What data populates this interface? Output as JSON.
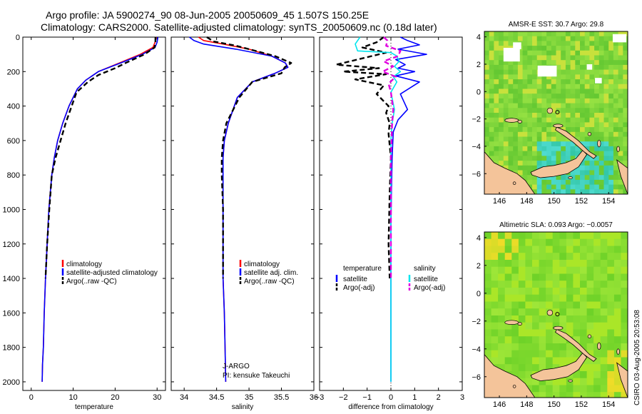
{
  "figure": {
    "title_line1": "Argo profile: JA 5900274_90 08-Jun-2005 20050609_45 1.507S 150.25E",
    "title_line2": "Climatology: CARS2000. Satellite-adjusted climatology: synTS_20050609.nc (0.18d later)",
    "side_label": "CSIRO 03-Aug-2005 20:53:08",
    "credit_line1": "J-ARGO",
    "credit_line2": "PI: kensuke Takeuchi"
  },
  "colors": {
    "climatology": "#ff0000",
    "satellite": "#0000ff",
    "argo": "#000000",
    "salinity_satellite": "#00e5ee",
    "salinity_argo": "#e000e0",
    "land": "#f4c49a"
  },
  "chart_data": [
    {
      "type": "line",
      "name": "temperature",
      "xlabel": "temperature",
      "ylabel": "",
      "xlim": [
        -2,
        32
      ],
      "ylim": [
        2050,
        0
      ],
      "xticks": [
        0,
        10,
        20,
        30
      ],
      "yticks": [
        0,
        200,
        400,
        600,
        800,
        1000,
        1200,
        1400,
        1600,
        1800,
        2000
      ],
      "legend": [
        "climatology",
        "satellite-adjusted climatology",
        "Argo(..raw -QC)"
      ],
      "legend_position": "lower-right",
      "series": [
        {
          "name": "climatology",
          "color": "#ff0000",
          "dash": "solid",
          "x": [
            29.8,
            29.5,
            29.0,
            26.0,
            21.0,
            16.0,
            13.0,
            11.0,
            9.0,
            7.5,
            6.3,
            5.5,
            4.9,
            4.2,
            3.8,
            3.4,
            3.1,
            2.9,
            2.7,
            2.6
          ],
          "y": [
            0,
            30,
            60,
            100,
            150,
            200,
            250,
            300,
            400,
            500,
            600,
            700,
            800,
            1000,
            1200,
            1400,
            1600,
            1800,
            1900,
            2000
          ]
        },
        {
          "name": "satellite-adjusted climatology",
          "color": "#0000ff",
          "dash": "solid",
          "x": [
            30.2,
            30.0,
            29.5,
            26.5,
            21.3,
            16.0,
            13.0,
            11.0,
            9.0,
            7.5,
            6.3,
            5.5,
            4.9,
            4.2,
            3.8,
            3.4,
            3.1,
            2.9,
            2.7,
            2.6
          ],
          "y": [
            0,
            30,
            60,
            100,
            150,
            200,
            250,
            300,
            400,
            500,
            600,
            700,
            800,
            1000,
            1200,
            1400,
            1600,
            1800,
            1900,
            2000
          ]
        },
        {
          "name": "Argo(..raw -QC)",
          "color": "#000000",
          "dash": "dashed",
          "x": [
            29.6,
            29.6,
            29.4,
            27.0,
            22.5,
            20.0,
            16.0,
            13.5,
            10.8,
            8.2,
            7.0,
            5.8,
            4.9,
            4.3,
            3.8,
            3.4
          ],
          "y": [
            0,
            30,
            60,
            100,
            150,
            180,
            220,
            260,
            320,
            500,
            600,
            700,
            800,
            1000,
            1200,
            1400
          ]
        }
      ]
    },
    {
      "type": "line",
      "name": "salinity",
      "xlabel": "salinity",
      "ylabel": "",
      "xlim": [
        33.8,
        36.0
      ],
      "ylim": [
        2050,
        0
      ],
      "xticks": [
        34,
        34.5,
        35,
        35.5,
        36
      ],
      "yticks": [
        0,
        200,
        400,
        600,
        800,
        1000,
        1200,
        1400,
        1600,
        1800,
        2000
      ],
      "legend": [
        "climatology",
        "satellite adj. clim.",
        "Argo(..raw -QC)"
      ],
      "legend_position": "lower-right",
      "series": [
        {
          "name": "climatology",
          "color": "#ff0000",
          "dash": "solid",
          "x": [
            34.22,
            34.3,
            34.6,
            35.0,
            35.35,
            35.56,
            35.6,
            35.4,
            35.05,
            34.82,
            34.68,
            34.62,
            34.6,
            34.6,
            34.6,
            34.6,
            34.6,
            34.62,
            34.63,
            34.64
          ],
          "y": [
            0,
            20,
            40,
            70,
            110,
            150,
            175,
            210,
            260,
            350,
            500,
            600,
            700,
            800,
            1000,
            1200,
            1400,
            1600,
            1800,
            2000
          ]
        },
        {
          "name": "satellite adj. clim.",
          "color": "#0000ff",
          "dash": "solid",
          "x": [
            34.08,
            34.15,
            34.3,
            34.8,
            35.35,
            35.56,
            35.6,
            35.4,
            35.05,
            34.82,
            34.68,
            34.62,
            34.6,
            34.6,
            34.6,
            34.6,
            34.6,
            34.62,
            34.63,
            34.64
          ],
          "y": [
            0,
            20,
            40,
            70,
            110,
            150,
            175,
            210,
            260,
            350,
            500,
            600,
            700,
            800,
            1000,
            1200,
            1400,
            1600,
            1800,
            2000
          ]
        },
        {
          "name": "Argo(..raw -QC)",
          "color": "#000000",
          "dash": "dashed",
          "x": [
            34.35,
            34.45,
            34.8,
            35.1,
            35.4,
            35.65,
            35.55,
            35.5,
            35.05,
            34.85,
            34.65,
            34.6,
            34.58,
            34.58,
            34.6,
            34.6
          ],
          "y": [
            0,
            25,
            50,
            80,
            110,
            150,
            175,
            210,
            260,
            350,
            500,
            600,
            700,
            800,
            1000,
            1400
          ]
        }
      ]
    },
    {
      "type": "line",
      "name": "difference",
      "xlabel": "difference from climatology",
      "ylabel": "",
      "xlim": [
        -3,
        3
      ],
      "ylim": [
        2050,
        0
      ],
      "xticks": [
        -3,
        -2,
        -1,
        0,
        1,
        2,
        3
      ],
      "yticks": [
        0,
        200,
        400,
        600,
        800,
        1000,
        1200,
        1400,
        1600,
        1800,
        2000
      ],
      "legend_left_title": "temperature",
      "legend_left": [
        "satellite",
        "Argo(-adj)"
      ],
      "legend_right_title": "salinity",
      "legend_right": [
        "satellite",
        "Argo(-adj)"
      ],
      "series": [
        {
          "name": "temperature satellite",
          "color": "#0000ff",
          "dash": "solid",
          "x": [
            0.4,
            0.7,
            1.2,
            0.3,
            1.5,
            0.2,
            0.6,
            0.3,
            1.0,
            0.2,
            1.2,
            0.4,
            0.7,
            0.3,
            0.1,
            0.05,
            0.02,
            0.0,
            0.0,
            0.0,
            0.0
          ],
          "y": [
            0,
            20,
            45,
            70,
            100,
            130,
            160,
            180,
            200,
            225,
            260,
            330,
            420,
            480,
            550,
            700,
            900,
            1100,
            1300,
            1500,
            2000
          ]
        },
        {
          "name": "temperature Argo(-adj)",
          "color": "#000000",
          "dash": "dashed",
          "x": [
            -0.3,
            -0.6,
            -1.2,
            -0.2,
            -2.3,
            -0.5,
            -2.0,
            -0.2,
            -1.5,
            -0.3,
            -0.6,
            -0.1,
            -0.2,
            -0.05,
            -0.1,
            0.0,
            -0.05,
            -0.1,
            -0.05
          ],
          "y": [
            0,
            30,
            60,
            90,
            160,
            180,
            200,
            215,
            245,
            280,
            330,
            400,
            440,
            500,
            560,
            700,
            900,
            1200,
            1400
          ]
        },
        {
          "name": "salinity satellite",
          "color": "#00e5ee",
          "dash": "solid",
          "x": [
            -1.3,
            -1.5,
            -1.4,
            0.0,
            0.25,
            0.35,
            0.15,
            0.4,
            0.1,
            0.25,
            0.0,
            0.15,
            0.05,
            0.0,
            0.0,
            0.0,
            0.0,
            0.0
          ],
          "y": [
            0,
            40,
            80,
            90,
            110,
            140,
            170,
            200,
            230,
            260,
            320,
            420,
            500,
            600,
            800,
            1000,
            1300,
            2000
          ]
        },
        {
          "name": "salinity Argo(-adj)",
          "color": "#e000e0",
          "dash": "dashed",
          "x": [
            -0.3,
            -0.15,
            -0.2,
            0.4,
            0.3,
            -0.3,
            0.1,
            -0.35,
            0.2,
            -0.1,
            0.0,
            0.1,
            0.05,
            0.0,
            0.0,
            0.0
          ],
          "y": [
            0,
            20,
            50,
            80,
            110,
            140,
            170,
            200,
            230,
            270,
            320,
            420,
            500,
            700,
            1000,
            1400
          ]
        }
      ]
    },
    {
      "type": "heatmap",
      "name": "sst-map",
      "title": "AMSR-E SST: 30.7 Argo: 29.8",
      "xlim": [
        144.9,
        155.4
      ],
      "ylim": [
        -7.5,
        4.4
      ],
      "xticks": [
        146,
        148,
        150,
        152,
        154
      ],
      "xtick_labels": [
        "146",
        "148",
        "150",
        "152",
        "154"
      ],
      "yticks": [
        -6,
        -4,
        -2,
        0,
        2,
        4
      ],
      "ytick_labels": [
        "−6",
        "−4",
        "−2",
        "0",
        "2",
        "4"
      ],
      "marker": {
        "lon": 150.25,
        "lat": -1.507
      }
    },
    {
      "type": "heatmap",
      "name": "sla-map",
      "title": "Altimetric SLA: 0.093 Argo: −0.0057",
      "xlim": [
        144.9,
        155.4
      ],
      "ylim": [
        -7.5,
        4.4
      ],
      "xticks": [
        146,
        148,
        150,
        152,
        154
      ],
      "xtick_labels": [
        "146",
        "148",
        "150",
        "152",
        "154"
      ],
      "yticks": [
        -6,
        -4,
        -2,
        0,
        2,
        4
      ],
      "ytick_labels": [
        "−6",
        "−4",
        "−2",
        "0",
        "2",
        "4"
      ],
      "marker": {
        "lon": 150.25,
        "lat": -1.507
      }
    }
  ]
}
